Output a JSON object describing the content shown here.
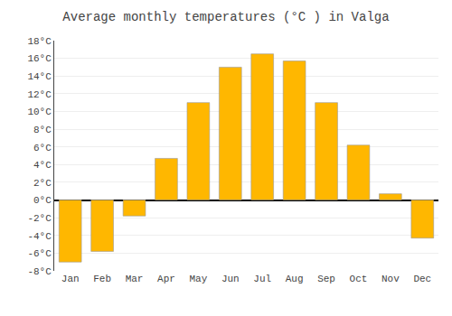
{
  "chart_data": {
    "type": "bar",
    "title": "Average monthly temperatures (°C ) in Valga",
    "categories": [
      "Jan",
      "Feb",
      "Mar",
      "Apr",
      "May",
      "Jun",
      "Jul",
      "Aug",
      "Sep",
      "Oct",
      "Nov",
      "Dec"
    ],
    "values": [
      -7,
      -5.8,
      -1.8,
      4.7,
      11,
      15,
      16.5,
      15.7,
      11,
      6.2,
      0.7,
      -4.3
    ],
    "color": "#FFB700",
    "ylim": [
      -8,
      18
    ],
    "yticks": [
      {
        "value": -8,
        "label": "-8°C"
      },
      {
        "value": -6,
        "label": "-6°C"
      },
      {
        "value": -4,
        "label": "-4°C"
      },
      {
        "value": -2,
        "label": "-2°C"
      },
      {
        "value": 0,
        "label": "0°C"
      },
      {
        "value": 2,
        "label": "2°C"
      },
      {
        "value": 4,
        "label": "4°C"
      },
      {
        "value": 6,
        "label": "6°C"
      },
      {
        "value": 8,
        "label": "8°C"
      },
      {
        "value": 10,
        "label": "10°C"
      },
      {
        "value": 12,
        "label": "12°C"
      },
      {
        "value": 14,
        "label": "14°C"
      },
      {
        "value": 16,
        "label": "16°C"
      },
      {
        "value": 18,
        "label": "18°C"
      }
    ],
    "grid": true
  }
}
